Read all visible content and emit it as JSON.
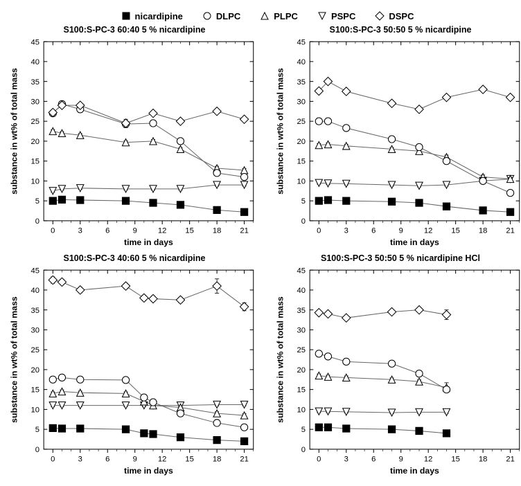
{
  "legend": [
    {
      "key": "nicardipine",
      "label": "nicardipine",
      "marker": "filled-square",
      "color": "#000000"
    },
    {
      "key": "DLPC",
      "label": "DLPC",
      "marker": "open-circle",
      "color": "#000000"
    },
    {
      "key": "PLPC",
      "label": "PLPC",
      "marker": "open-triangle-up",
      "color": "#000000"
    },
    {
      "key": "PSPC",
      "label": "PSPC",
      "marker": "open-triangle-down",
      "color": "#000000"
    },
    {
      "key": "DSPC",
      "label": "DSPC",
      "marker": "open-diamond",
      "color": "#000000"
    }
  ],
  "global": {
    "background_color": "#ffffff",
    "line_color": "#666666",
    "axis_color": "#000000",
    "marker_stroke": "#000000",
    "marker_fill_open": "#ffffff",
    "marker_size": 5,
    "line_width": 1,
    "error_cap": 3,
    "font_family": "Arial",
    "title_fontsize": 12.5,
    "axis_fontsize": 11,
    "label_fontsize": 12
  },
  "panels": [
    {
      "id": "p1",
      "title": "S100:S-PC-3 60:40 5 % nicardipine",
      "xlabel": "time in days",
      "ylabel": "substance in wt% of total mass",
      "xlim": [
        -1,
        22
      ],
      "ylim": [
        0,
        45
      ],
      "xticks": [
        0,
        3,
        6,
        9,
        12,
        15,
        18,
        21
      ],
      "yticks": [
        0,
        5,
        10,
        15,
        20,
        25,
        30,
        35,
        40,
        45
      ],
      "series": {
        "nicardipine": {
          "x": [
            0,
            1,
            3,
            8,
            11,
            14,
            18,
            21
          ],
          "y": [
            5.0,
            5.3,
            5.2,
            5.0,
            4.5,
            4.0,
            2.7,
            2.2
          ],
          "err": [
            0.2,
            0.2,
            0.2,
            0.2,
            0.2,
            0.2,
            0.2,
            0.2
          ]
        },
        "DLPC": {
          "x": [
            0,
            1,
            3,
            8,
            11,
            14,
            18,
            21
          ],
          "y": [
            27.0,
            29.3,
            28.0,
            24.3,
            24.5,
            20.0,
            12.0,
            11.0
          ],
          "err": [
            0.5,
            0.5,
            0.4,
            0.9,
            0.5,
            0.5,
            0.7,
            0.5
          ]
        },
        "PLPC": {
          "x": [
            0,
            1,
            3,
            8,
            11,
            14,
            18,
            21
          ],
          "y": [
            22.5,
            22.0,
            21.5,
            19.7,
            20.0,
            18.0,
            13.2,
            12.7
          ],
          "err": [
            0.4,
            0.4,
            0.4,
            0.4,
            0.4,
            0.4,
            0.5,
            0.4
          ]
        },
        "PSPC": {
          "x": [
            0,
            1,
            3,
            8,
            11,
            14,
            18,
            21
          ],
          "y": [
            7.5,
            8.0,
            8.2,
            8.0,
            8.0,
            8.0,
            9.0,
            9.0
          ],
          "err": [
            0.3,
            0.3,
            0.3,
            0.3,
            0.3,
            0.3,
            0.3,
            0.3
          ]
        },
        "DSPC": {
          "x": [
            0,
            1,
            3,
            8,
            11,
            14,
            18,
            21
          ],
          "y": [
            27.2,
            29.0,
            29.0,
            24.5,
            27.0,
            25.0,
            27.5,
            25.5
          ],
          "err": [
            0.5,
            0.4,
            0.4,
            1.0,
            0.5,
            0.5,
            0.6,
            0.5
          ]
        }
      }
    },
    {
      "id": "p2",
      "title": "S100:S-PC-3 50:50 5 % nicardipine",
      "xlabel": "time in days",
      "ylabel": "substance in wt% of total mass",
      "xlim": [
        -1,
        22
      ],
      "ylim": [
        0,
        45
      ],
      "xticks": [
        0,
        3,
        6,
        9,
        12,
        15,
        18,
        21
      ],
      "yticks": [
        0,
        5,
        10,
        15,
        20,
        25,
        30,
        35,
        40,
        45
      ],
      "series": {
        "nicardipine": {
          "x": [
            0,
            1,
            3,
            8,
            11,
            14,
            18,
            21
          ],
          "y": [
            5.0,
            5.2,
            5.0,
            4.8,
            4.5,
            3.6,
            2.6,
            2.2
          ],
          "err": [
            0.2,
            0.2,
            0.2,
            0.2,
            0.2,
            0.2,
            0.2,
            0.2
          ]
        },
        "DLPC": {
          "x": [
            0,
            1,
            3,
            8,
            11,
            14,
            18,
            21
          ],
          "y": [
            25.0,
            25.0,
            23.3,
            20.5,
            18.5,
            15.0,
            10.0,
            7.0
          ],
          "err": [
            0.4,
            0.4,
            0.4,
            0.4,
            0.4,
            0.5,
            0.5,
            0.5
          ]
        },
        "PLPC": {
          "x": [
            0,
            1,
            3,
            8,
            11,
            14,
            18,
            21
          ],
          "y": [
            19.0,
            19.2,
            18.8,
            18.0,
            17.5,
            16.0,
            11.0,
            10.5
          ],
          "err": [
            0.4,
            0.4,
            0.4,
            0.4,
            0.4,
            0.5,
            0.5,
            0.4
          ]
        },
        "PSPC": {
          "x": [
            0,
            1,
            3,
            8,
            11,
            14,
            18,
            21
          ],
          "y": [
            9.5,
            9.4,
            9.3,
            9.0,
            8.8,
            9.0,
            10.0,
            10.5
          ],
          "err": [
            0.3,
            0.3,
            0.3,
            0.3,
            0.3,
            0.3,
            0.3,
            0.3
          ]
        },
        "DSPC": {
          "x": [
            0,
            1,
            3,
            8,
            11,
            14,
            18,
            21
          ],
          "y": [
            32.6,
            35.0,
            32.5,
            29.5,
            28.0,
            31.0,
            33.0,
            31.0
          ],
          "err": [
            0.6,
            0.6,
            0.6,
            0.6,
            0.6,
            0.6,
            0.6,
            0.6
          ]
        }
      }
    },
    {
      "id": "p3",
      "title": "S100:S-PC-3 40:60 5 % nicardipine",
      "xlabel": "time in days",
      "ylabel": "substance in wt% of total mass",
      "xlim": [
        -1,
        22
      ],
      "ylim": [
        0,
        45
      ],
      "xticks": [
        0,
        3,
        6,
        9,
        12,
        15,
        18,
        21
      ],
      "yticks": [
        0,
        5,
        10,
        15,
        20,
        25,
        30,
        35,
        40,
        45
      ],
      "series": {
        "nicardipine": {
          "x": [
            0,
            1,
            3,
            8,
            10,
            11,
            14,
            18,
            21
          ],
          "y": [
            5.3,
            5.2,
            5.2,
            5.0,
            4.0,
            3.8,
            3.0,
            2.3,
            2.0
          ],
          "err": [
            0.2,
            0.2,
            0.2,
            0.2,
            0.2,
            0.2,
            0.2,
            0.2,
            0.2
          ]
        },
        "DLPC": {
          "x": [
            0,
            1,
            3,
            8,
            10,
            11,
            14,
            18,
            21
          ],
          "y": [
            17.5,
            18.0,
            17.5,
            17.4,
            13.0,
            11.8,
            9.0,
            6.6,
            5.5
          ],
          "err": [
            0.4,
            0.4,
            0.4,
            0.4,
            0.5,
            0.4,
            0.4,
            0.4,
            0.4
          ]
        },
        "PLPC": {
          "x": [
            0,
            1,
            3,
            8,
            10,
            11,
            14,
            18,
            21
          ],
          "y": [
            14.0,
            14.5,
            14.2,
            14.0,
            12.0,
            11.0,
            10.5,
            9.0,
            8.5
          ],
          "err": [
            0.4,
            0.4,
            0.4,
            0.4,
            0.4,
            0.4,
            0.4,
            0.4,
            0.4
          ]
        },
        "PSPC": {
          "x": [
            0,
            1,
            3,
            8,
            10,
            11,
            14,
            18,
            21
          ],
          "y": [
            11.0,
            11.0,
            11.0,
            11.0,
            11.0,
            11.0,
            11.0,
            11.2,
            11.2
          ],
          "err": [
            0.3,
            0.3,
            0.3,
            0.3,
            0.3,
            0.3,
            0.3,
            0.3,
            0.3
          ]
        },
        "DSPC": {
          "x": [
            0,
            1,
            3,
            8,
            10,
            11,
            14,
            18,
            21
          ],
          "y": [
            42.5,
            42.0,
            40.0,
            41.0,
            38.0,
            37.8,
            37.5,
            41.0,
            35.8
          ],
          "err": [
            0.8,
            0.7,
            0.7,
            0.7,
            0.7,
            0.7,
            0.7,
            1.8,
            1.0
          ]
        }
      }
    },
    {
      "id": "p4",
      "title": "S100:S-PC-3 50:50 5 % nicardipine HCl",
      "xlabel": "time in days",
      "ylabel": "substance in wt% of total mass",
      "xlim": [
        -1,
        22
      ],
      "ylim": [
        0,
        45
      ],
      "xticks": [
        0,
        3,
        6,
        9,
        12,
        15,
        18,
        21
      ],
      "yticks": [
        0,
        5,
        10,
        15,
        20,
        25,
        30,
        35,
        40,
        45
      ],
      "series": {
        "nicardipine": {
          "x": [
            0,
            1,
            3,
            8,
            11,
            14
          ],
          "y": [
            5.5,
            5.5,
            5.2,
            5.0,
            4.6,
            4.0
          ],
          "err": [
            0.2,
            0.2,
            0.2,
            0.2,
            0.2,
            0.2
          ]
        },
        "DLPC": {
          "x": [
            0,
            1,
            3,
            8,
            11,
            14
          ],
          "y": [
            24.0,
            23.3,
            22.0,
            21.5,
            19.0,
            15.0
          ],
          "err": [
            0.4,
            0.4,
            0.4,
            0.4,
            0.4,
            0.5
          ]
        },
        "PLPC": {
          "x": [
            0,
            1,
            3,
            8,
            11,
            14
          ],
          "y": [
            18.5,
            18.2,
            18.0,
            17.5,
            17.0,
            15.5
          ],
          "err": [
            0.4,
            0.4,
            0.4,
            0.4,
            0.4,
            1.2
          ]
        },
        "PSPC": {
          "x": [
            0,
            1,
            3,
            8,
            11,
            14
          ],
          "y": [
            9.5,
            9.5,
            9.4,
            9.2,
            9.3,
            9.3
          ],
          "err": [
            0.3,
            0.3,
            0.3,
            0.3,
            0.3,
            0.3
          ]
        },
        "DSPC": {
          "x": [
            0,
            1,
            3,
            8,
            11,
            14
          ],
          "y": [
            34.3,
            34.0,
            33.0,
            34.5,
            35.0,
            33.8
          ],
          "err": [
            0.5,
            0.5,
            0.5,
            0.5,
            0.5,
            1.2
          ]
        }
      }
    }
  ]
}
